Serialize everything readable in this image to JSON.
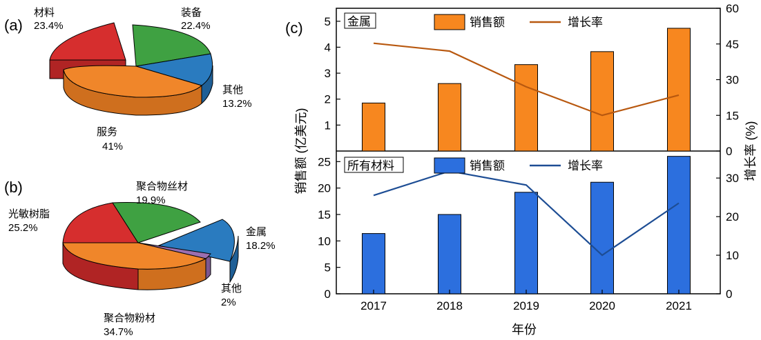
{
  "figure": {
    "panel_a": "(a)",
    "panel_b": "(b)",
    "panel_c": "(c)"
  },
  "chart_data": [
    {
      "type": "pie",
      "panel": "(a)",
      "slices": [
        {
          "name": "材料",
          "label": "23.4%",
          "value": 23.4,
          "color": "#d62e2e",
          "exploded": true
        },
        {
          "name": "装备",
          "label": "22.4%",
          "value": 22.4,
          "color": "#3fa142"
        },
        {
          "name": "其他",
          "label": "13.2%",
          "value": 13.2,
          "color": "#2a7bbf"
        },
        {
          "name": "服务",
          "label": "41%",
          "value": 41.0,
          "color": "#f0862a"
        }
      ]
    },
    {
      "type": "pie",
      "panel": "(b)",
      "slices": [
        {
          "name": "光敏树脂",
          "label": "25.2%",
          "value": 25.2,
          "color": "#d62e2e"
        },
        {
          "name": "聚合物丝材",
          "label": "19.9%",
          "value": 19.9,
          "color": "#3fa142"
        },
        {
          "name": "金属",
          "label": "18.2%",
          "value": 18.2,
          "color": "#2a7bbf",
          "exploded": true
        },
        {
          "name": "其他",
          "label": "2%",
          "value": 2.0,
          "color": "#9b6fb0"
        },
        {
          "name": "聚合物粉材",
          "label": "34.7%",
          "value": 34.7,
          "color": "#f0862a"
        }
      ]
    },
    {
      "type": "bar+line",
      "panel": "(c)",
      "categories": [
        "2017",
        "2018",
        "2019",
        "2020",
        "2021"
      ],
      "xlabel": "年份",
      "ylabel_left": "销售额 (亿美元)",
      "ylabel_right": "增长率 (%)",
      "subplots": [
        {
          "title": "金属",
          "bar_series": {
            "name": "销售额",
            "values": [
              1.85,
              2.6,
              3.33,
              3.83,
              4.73
            ],
            "color": "#f7871f"
          },
          "line_series": {
            "name": "增长率",
            "values": [
              45.3,
              42,
              27,
              15,
              23.5
            ],
            "color": "#b8580f"
          },
          "ylim_left": [
            0,
            5.5
          ],
          "yticks_left": [
            0,
            1,
            2,
            3,
            4,
            5
          ],
          "ylim_right": [
            0,
            60
          ],
          "yticks_right": [
            0,
            15,
            30,
            45,
            60
          ]
        },
        {
          "title": "所有材料",
          "bar_series": {
            "name": "销售额",
            "values": [
              11.4,
              15.0,
              19.2,
              21.1,
              26.0
            ],
            "color": "#2c6fde"
          },
          "line_series": {
            "name": "增长率",
            "values": [
              25.5,
              31.8,
              28.2,
              10,
              23.5
            ],
            "color": "#1d4d94"
          },
          "ylim_left": [
            0,
            27
          ],
          "yticks_left": [
            0,
            5,
            10,
            15,
            20,
            25
          ],
          "ylim_right": [
            0,
            37
          ],
          "yticks_right": [
            0,
            10,
            20,
            30
          ]
        }
      ]
    }
  ]
}
